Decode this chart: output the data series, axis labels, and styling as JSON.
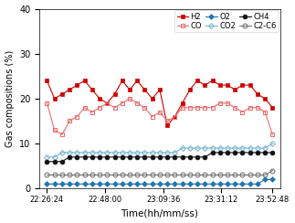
{
  "xlabel": "Time(hh/mm/ss)",
  "ylabel": "Gas compositions (%)",
  "ylim": [
    0,
    40
  ],
  "yticks": [
    0,
    10,
    20,
    30,
    40
  ],
  "xtick_labels": [
    "22:26:24",
    "22:48:00",
    "23:09:36",
    "23:31:12",
    "23:52:48"
  ],
  "x": [
    0,
    1,
    2,
    3,
    4,
    5,
    6,
    7,
    8,
    9,
    10,
    11,
    12,
    13,
    14,
    15,
    16,
    17,
    18,
    19,
    20,
    21,
    22,
    23,
    24,
    25,
    26,
    27,
    28,
    29,
    30
  ],
  "H2": [
    24,
    20,
    21,
    22,
    23,
    24,
    22,
    20,
    19,
    21,
    24,
    22,
    24,
    22,
    20,
    22,
    14,
    16,
    19,
    22,
    24,
    23,
    24,
    23,
    23,
    22,
    23,
    23,
    21,
    20,
    18
  ],
  "CO": [
    19,
    13,
    12,
    15,
    16,
    18,
    17,
    18,
    19,
    18,
    19,
    20,
    19,
    18,
    16,
    17,
    15,
    16,
    18,
    18,
    18,
    18,
    18,
    19,
    19,
    18,
    17,
    18,
    18,
    17,
    12
  ],
  "O2": [
    1,
    1,
    1,
    1,
    1,
    1,
    1,
    1,
    1,
    1,
    1,
    1,
    1,
    1,
    1,
    1,
    1,
    1,
    1,
    1,
    1,
    1,
    1,
    1,
    1,
    1,
    1,
    1,
    1,
    2,
    2
  ],
  "CO2": [
    7,
    7,
    8,
    8,
    8,
    8,
    8,
    8,
    8,
    8,
    8,
    8,
    8,
    8,
    8,
    8,
    8,
    8,
    9,
    9,
    9,
    9,
    9,
    9,
    9,
    9,
    9,
    9,
    9,
    9,
    10
  ],
  "CH4": [
    6,
    6,
    6,
    7,
    7,
    7,
    7,
    7,
    7,
    7,
    7,
    7,
    7,
    7,
    7,
    7,
    7,
    7,
    7,
    7,
    7,
    7,
    8,
    8,
    8,
    8,
    8,
    8,
    8,
    8,
    8
  ],
  "C2C6": [
    3,
    3,
    3,
    3,
    3,
    3,
    3,
    3,
    3,
    3,
    3,
    3,
    3,
    3,
    3,
    3,
    3,
    3,
    3,
    3,
    3,
    3,
    3,
    3,
    3,
    3,
    3,
    3,
    3,
    3,
    4
  ],
  "H2_color": "#cc0000",
  "CO_color": "#e87070",
  "O2_color": "#1f77b4",
  "CO2_color": "#7ab8d4",
  "CH4_color": "#111111",
  "C2C6_color": "#777777",
  "xtick_positions": [
    0,
    7.7,
    15.5,
    23.2,
    30
  ]
}
